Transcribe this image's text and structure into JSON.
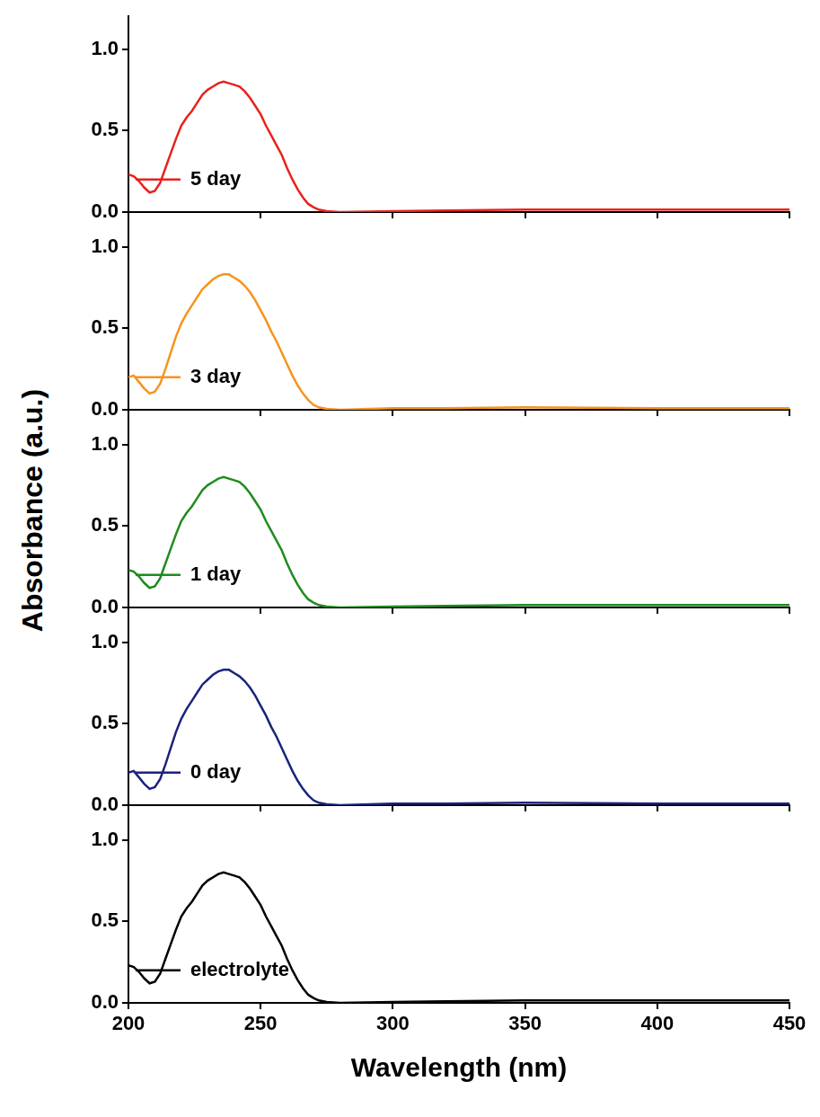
{
  "chart_data": [
    {
      "type": "line",
      "legend": "top right",
      "grid": false,
      "tick_labels": "y",
      "x": [
        200,
        202,
        204,
        206,
        208,
        210,
        212,
        214,
        216,
        218,
        220,
        222,
        224,
        226,
        228,
        230,
        232,
        234,
        236,
        238,
        240,
        242,
        244,
        246,
        248,
        250,
        252,
        254,
        256,
        258,
        260,
        262,
        264,
        266,
        268,
        270,
        272,
        275,
        280,
        300,
        320,
        350,
        400,
        450
      ],
      "series": [
        {
          "name": "5 day",
          "color": "#e8221c",
          "values": [
            0.23,
            0.22,
            0.19,
            0.15,
            0.12,
            0.13,
            0.18,
            0.27,
            0.36,
            0.45,
            0.53,
            0.58,
            0.62,
            0.67,
            0.72,
            0.75,
            0.77,
            0.79,
            0.8,
            0.79,
            0.78,
            0.77,
            0.74,
            0.7,
            0.65,
            0.6,
            0.53,
            0.47,
            0.41,
            0.35,
            0.27,
            0.2,
            0.14,
            0.09,
            0.05,
            0.03,
            0.015,
            0.005,
            0.0,
            0.005,
            0.01,
            0.015,
            0.015,
            0.015
          ]
        }
      ],
      "xlim": [
        200,
        450
      ],
      "xticks": [
        200,
        250,
        300,
        350,
        400,
        450
      ],
      "ylim": [
        0,
        1.2
      ],
      "yticks": [
        {
          "value": 0,
          "label": "0.0"
        },
        {
          "value": 0.5,
          "label": "0.5"
        },
        {
          "value": 1,
          "label": "1.0"
        }
      ]
    },
    {
      "type": "line",
      "legend": "top right",
      "grid": false,
      "tick_labels": "y",
      "x": [
        200,
        202,
        204,
        206,
        208,
        210,
        212,
        214,
        216,
        218,
        220,
        222,
        224,
        226,
        228,
        230,
        232,
        234,
        236,
        238,
        240,
        242,
        244,
        246,
        248,
        250,
        252,
        254,
        256,
        258,
        260,
        262,
        264,
        266,
        268,
        270,
        272,
        275,
        280,
        300,
        320,
        350,
        400,
        450
      ],
      "series": [
        {
          "name": "3 day",
          "color": "#f7931e",
          "values": [
            0.2,
            0.21,
            0.17,
            0.13,
            0.1,
            0.11,
            0.16,
            0.25,
            0.35,
            0.45,
            0.53,
            0.59,
            0.64,
            0.69,
            0.74,
            0.77,
            0.8,
            0.82,
            0.83,
            0.83,
            0.81,
            0.79,
            0.76,
            0.72,
            0.67,
            0.61,
            0.55,
            0.48,
            0.42,
            0.35,
            0.28,
            0.21,
            0.15,
            0.1,
            0.06,
            0.03,
            0.015,
            0.005,
            0.0,
            0.01,
            0.01,
            0.015,
            0.01,
            0.01
          ]
        }
      ],
      "xlim": [
        200,
        450
      ],
      "xticks": [
        200,
        250,
        300,
        350,
        400,
        450
      ],
      "ylim": [
        0,
        1.2
      ],
      "yticks": [
        {
          "value": 0,
          "label": "0.0"
        },
        {
          "value": 0.5,
          "label": "0.5"
        },
        {
          "value": 1,
          "label": "1.0"
        }
      ]
    },
    {
      "type": "line",
      "legend": "top right",
      "grid": false,
      "tick_labels": "y",
      "y_label": "Absorbance (a.u.)",
      "x": [
        200,
        202,
        204,
        206,
        208,
        210,
        212,
        214,
        216,
        218,
        220,
        222,
        224,
        226,
        228,
        230,
        232,
        234,
        236,
        238,
        240,
        242,
        244,
        246,
        248,
        250,
        252,
        254,
        256,
        258,
        260,
        262,
        264,
        266,
        268,
        270,
        272,
        275,
        280,
        300,
        320,
        350,
        400,
        450
      ],
      "series": [
        {
          "name": "1 day",
          "color": "#1e8c1e",
          "values": [
            0.23,
            0.22,
            0.19,
            0.15,
            0.12,
            0.13,
            0.18,
            0.27,
            0.36,
            0.45,
            0.53,
            0.58,
            0.62,
            0.67,
            0.72,
            0.75,
            0.77,
            0.79,
            0.8,
            0.79,
            0.78,
            0.77,
            0.74,
            0.7,
            0.65,
            0.6,
            0.53,
            0.47,
            0.41,
            0.35,
            0.27,
            0.2,
            0.14,
            0.09,
            0.05,
            0.03,
            0.015,
            0.005,
            0.0,
            0.005,
            0.01,
            0.015,
            0.015,
            0.015
          ]
        }
      ],
      "xlim": [
        200,
        450
      ],
      "xticks": [
        200,
        250,
        300,
        350,
        400,
        450
      ],
      "ylim": [
        0,
        1.2
      ],
      "yticks": [
        {
          "value": 0,
          "label": "0.0"
        },
        {
          "value": 0.5,
          "label": "0.5"
        },
        {
          "value": 1,
          "label": "1.0"
        }
      ]
    },
    {
      "type": "line",
      "legend": "top right",
      "grid": false,
      "tick_labels": "y",
      "x": [
        200,
        202,
        204,
        206,
        208,
        210,
        212,
        214,
        216,
        218,
        220,
        222,
        224,
        226,
        228,
        230,
        232,
        234,
        236,
        238,
        240,
        242,
        244,
        246,
        248,
        250,
        252,
        254,
        256,
        258,
        260,
        262,
        264,
        266,
        268,
        270,
        272,
        275,
        280,
        300,
        320,
        350,
        400,
        450
      ],
      "series": [
        {
          "name": "0 day",
          "color": "#1a237e",
          "values": [
            0.2,
            0.21,
            0.17,
            0.13,
            0.1,
            0.11,
            0.16,
            0.25,
            0.35,
            0.45,
            0.53,
            0.59,
            0.64,
            0.69,
            0.74,
            0.77,
            0.8,
            0.82,
            0.83,
            0.83,
            0.81,
            0.79,
            0.76,
            0.72,
            0.67,
            0.61,
            0.55,
            0.48,
            0.42,
            0.35,
            0.28,
            0.21,
            0.15,
            0.1,
            0.06,
            0.03,
            0.015,
            0.005,
            0.0,
            0.01,
            0.01,
            0.015,
            0.01,
            0.01
          ]
        }
      ],
      "xlim": [
        200,
        450
      ],
      "xticks": [
        200,
        250,
        300,
        350,
        400,
        450
      ],
      "ylim": [
        0,
        1.2
      ],
      "yticks": [
        {
          "value": 0,
          "label": "0.0"
        },
        {
          "value": 0.5,
          "label": "0.5"
        },
        {
          "value": 1,
          "label": "1.0"
        }
      ]
    },
    {
      "type": "line",
      "legend": "top right",
      "grid": false,
      "x_label": "Wavelength (nm)",
      "x": [
        200,
        202,
        204,
        206,
        208,
        210,
        212,
        214,
        216,
        218,
        220,
        222,
        224,
        226,
        228,
        230,
        232,
        234,
        236,
        238,
        240,
        242,
        244,
        246,
        248,
        250,
        252,
        254,
        256,
        258,
        260,
        262,
        264,
        266,
        268,
        270,
        272,
        275,
        280,
        300,
        320,
        350,
        400,
        450
      ],
      "series": [
        {
          "name": "electrolyte",
          "color": "#000000",
          "values": [
            0.23,
            0.22,
            0.19,
            0.15,
            0.12,
            0.13,
            0.18,
            0.27,
            0.36,
            0.45,
            0.53,
            0.58,
            0.62,
            0.67,
            0.72,
            0.75,
            0.77,
            0.79,
            0.8,
            0.79,
            0.78,
            0.77,
            0.74,
            0.7,
            0.65,
            0.6,
            0.53,
            0.47,
            0.41,
            0.35,
            0.27,
            0.2,
            0.14,
            0.09,
            0.05,
            0.03,
            0.015,
            0.005,
            0.0,
            0.005,
            0.01,
            0.015,
            0.015,
            0.015
          ]
        }
      ],
      "xlim": [
        200,
        450
      ],
      "xticks": [
        200,
        250,
        300,
        350,
        400,
        450
      ],
      "ylim": [
        0,
        1.2
      ],
      "yticks": [
        {
          "value": 0,
          "label": "0.0"
        },
        {
          "value": 0.5,
          "label": "0.5"
        },
        {
          "value": 1,
          "label": "1.0"
        }
      ]
    }
  ]
}
